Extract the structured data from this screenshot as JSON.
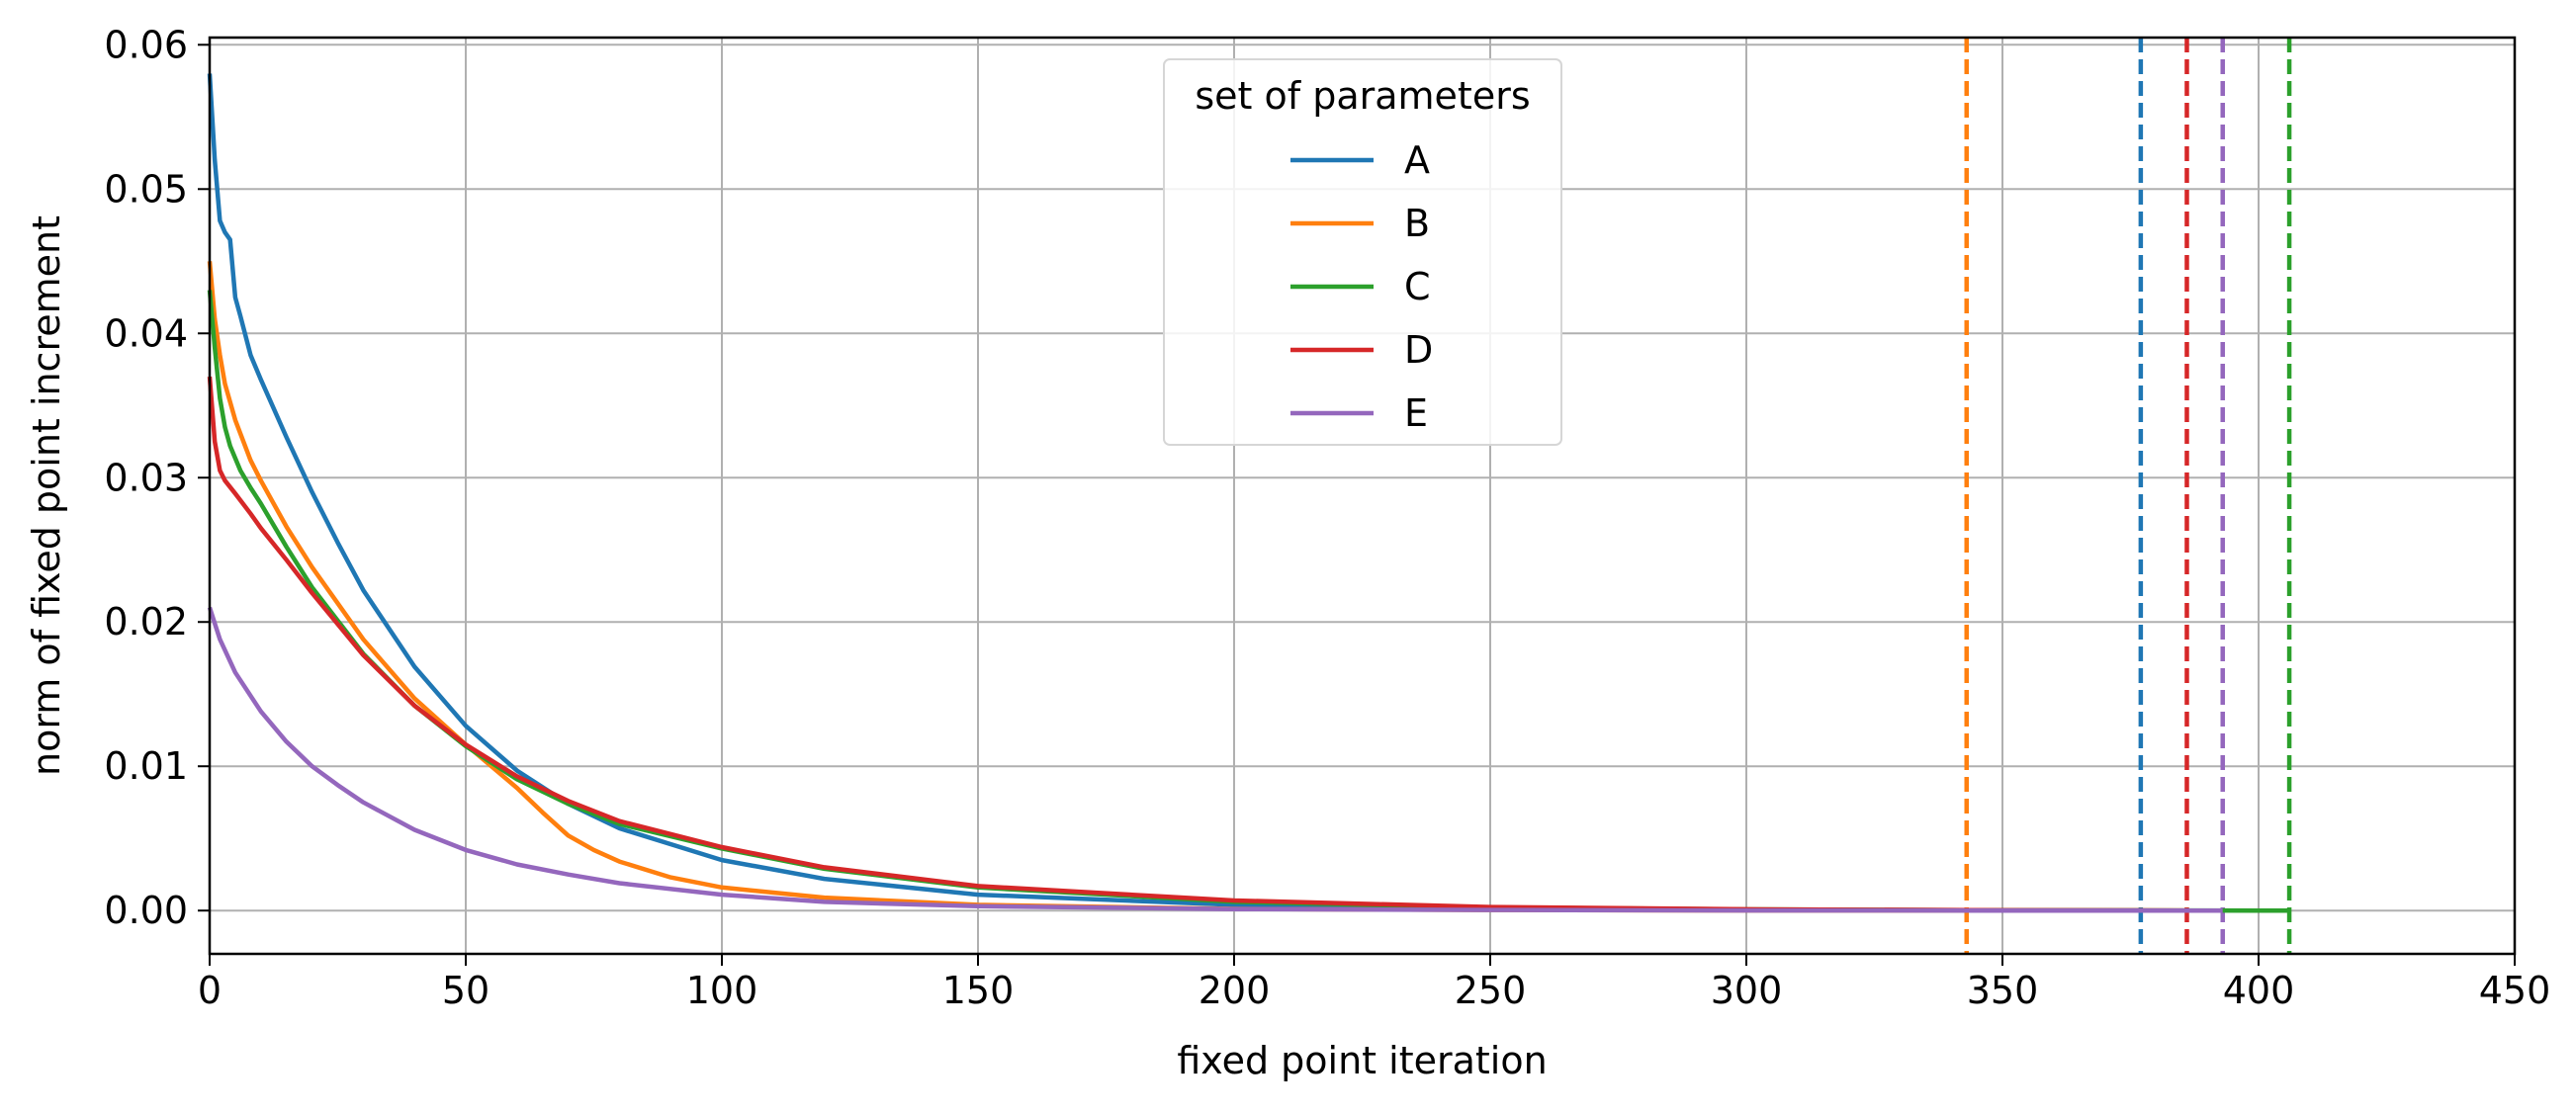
{
  "chart_data": {
    "type": "line",
    "title": "",
    "xlabel": "fixed point iteration",
    "ylabel": "norm of fixed point increment",
    "xlim": [
      0,
      450
    ],
    "ylim": [
      -0.003,
      0.0605
    ],
    "xticks": [
      0,
      50,
      100,
      150,
      200,
      250,
      300,
      350,
      400,
      450
    ],
    "yticks": [
      0.0,
      0.01,
      0.02,
      0.03,
      0.04,
      0.05,
      0.06
    ],
    "xtick_labels": [
      "0",
      "50",
      "100",
      "150",
      "200",
      "250",
      "300",
      "350",
      "400",
      "450"
    ],
    "ytick_labels": [
      "0.00",
      "0.01",
      "0.02",
      "0.03",
      "0.04",
      "0.05",
      "0.06"
    ],
    "grid": true,
    "legend": {
      "title": "set of parameters",
      "placement": "top-center"
    },
    "series": [
      {
        "name": "A",
        "color": "#1f77b4",
        "x": [
          0,
          1,
          2,
          3,
          4,
          5,
          6,
          8,
          10,
          15,
          20,
          25,
          30,
          40,
          50,
          60,
          70,
          80,
          100,
          120,
          150,
          200,
          250,
          300,
          350,
          377
        ],
        "y": [
          0.058,
          0.052,
          0.0478,
          0.047,
          0.0465,
          0.0425,
          0.0412,
          0.0385,
          0.0368,
          0.0328,
          0.029,
          0.0255,
          0.0222,
          0.0169,
          0.0128,
          0.0097,
          0.0074,
          0.0057,
          0.0035,
          0.0022,
          0.0011,
          0.0004,
          0.00015,
          6e-05,
          2e-05,
          1e-05
        ]
      },
      {
        "name": "B",
        "color": "#ff7f0e",
        "x": [
          0,
          1,
          2,
          3,
          5,
          8,
          10,
          15,
          20,
          30,
          40,
          50,
          60,
          65,
          70,
          75,
          80,
          90,
          100,
          120,
          150,
          200,
          250,
          300,
          343
        ],
        "y": [
          0.045,
          0.041,
          0.0385,
          0.0365,
          0.034,
          0.0312,
          0.0298,
          0.0266,
          0.0238,
          0.0188,
          0.0147,
          0.0115,
          0.0085,
          0.0068,
          0.0052,
          0.0042,
          0.0034,
          0.0023,
          0.0016,
          0.0009,
          0.0004,
          0.00012,
          4e-05,
          1e-05,
          0.0
        ]
      },
      {
        "name": "C",
        "color": "#2ca02c",
        "x": [
          0,
          1,
          2,
          3,
          4,
          6,
          8,
          10,
          15,
          20,
          30,
          40,
          50,
          60,
          70,
          80,
          100,
          120,
          150,
          200,
          250,
          300,
          350,
          400,
          406
        ],
        "y": [
          0.043,
          0.039,
          0.0355,
          0.0335,
          0.0322,
          0.0305,
          0.0293,
          0.0282,
          0.0252,
          0.0224,
          0.0178,
          0.0142,
          0.0114,
          0.0091,
          0.0074,
          0.006,
          0.0043,
          0.0029,
          0.0016,
          0.0006,
          0.00022,
          8e-05,
          2e-05,
          0.0,
          0.0
        ]
      },
      {
        "name": "D",
        "color": "#d62728",
        "x": [
          0,
          1,
          2,
          3,
          5,
          8,
          10,
          15,
          20,
          30,
          40,
          50,
          60,
          70,
          80,
          100,
          120,
          150,
          200,
          250,
          300,
          350,
          386
        ],
        "y": [
          0.037,
          0.0325,
          0.0305,
          0.0298,
          0.0289,
          0.0275,
          0.0265,
          0.0243,
          0.022,
          0.0177,
          0.0142,
          0.0115,
          0.0093,
          0.0076,
          0.0062,
          0.0044,
          0.003,
          0.0017,
          0.0007,
          0.00025,
          9e-05,
          2e-05,
          1e-05
        ]
      },
      {
        "name": "E",
        "color": "#9467bd",
        "x": [
          0,
          2,
          5,
          10,
          15,
          20,
          25,
          30,
          40,
          50,
          60,
          70,
          80,
          100,
          120,
          150,
          200,
          250,
          300,
          350,
          393
        ],
        "y": [
          0.021,
          0.0188,
          0.0165,
          0.0138,
          0.0117,
          0.01,
          0.0087,
          0.0075,
          0.0056,
          0.0042,
          0.0032,
          0.0025,
          0.0019,
          0.0011,
          0.0006,
          0.0003,
          0.0001,
          4e-05,
          1e-05,
          0.0,
          0.0
        ]
      }
    ],
    "vlines": [
      {
        "x": 343,
        "color": "#ff7f0e",
        "style": "dashed"
      },
      {
        "x": 377,
        "color": "#1f77b4",
        "style": "dashed"
      },
      {
        "x": 386,
        "color": "#d62728",
        "style": "dashed"
      },
      {
        "x": 393,
        "color": "#9467bd",
        "style": "dashed"
      },
      {
        "x": 406,
        "color": "#2ca02c",
        "style": "dashed"
      }
    ]
  }
}
